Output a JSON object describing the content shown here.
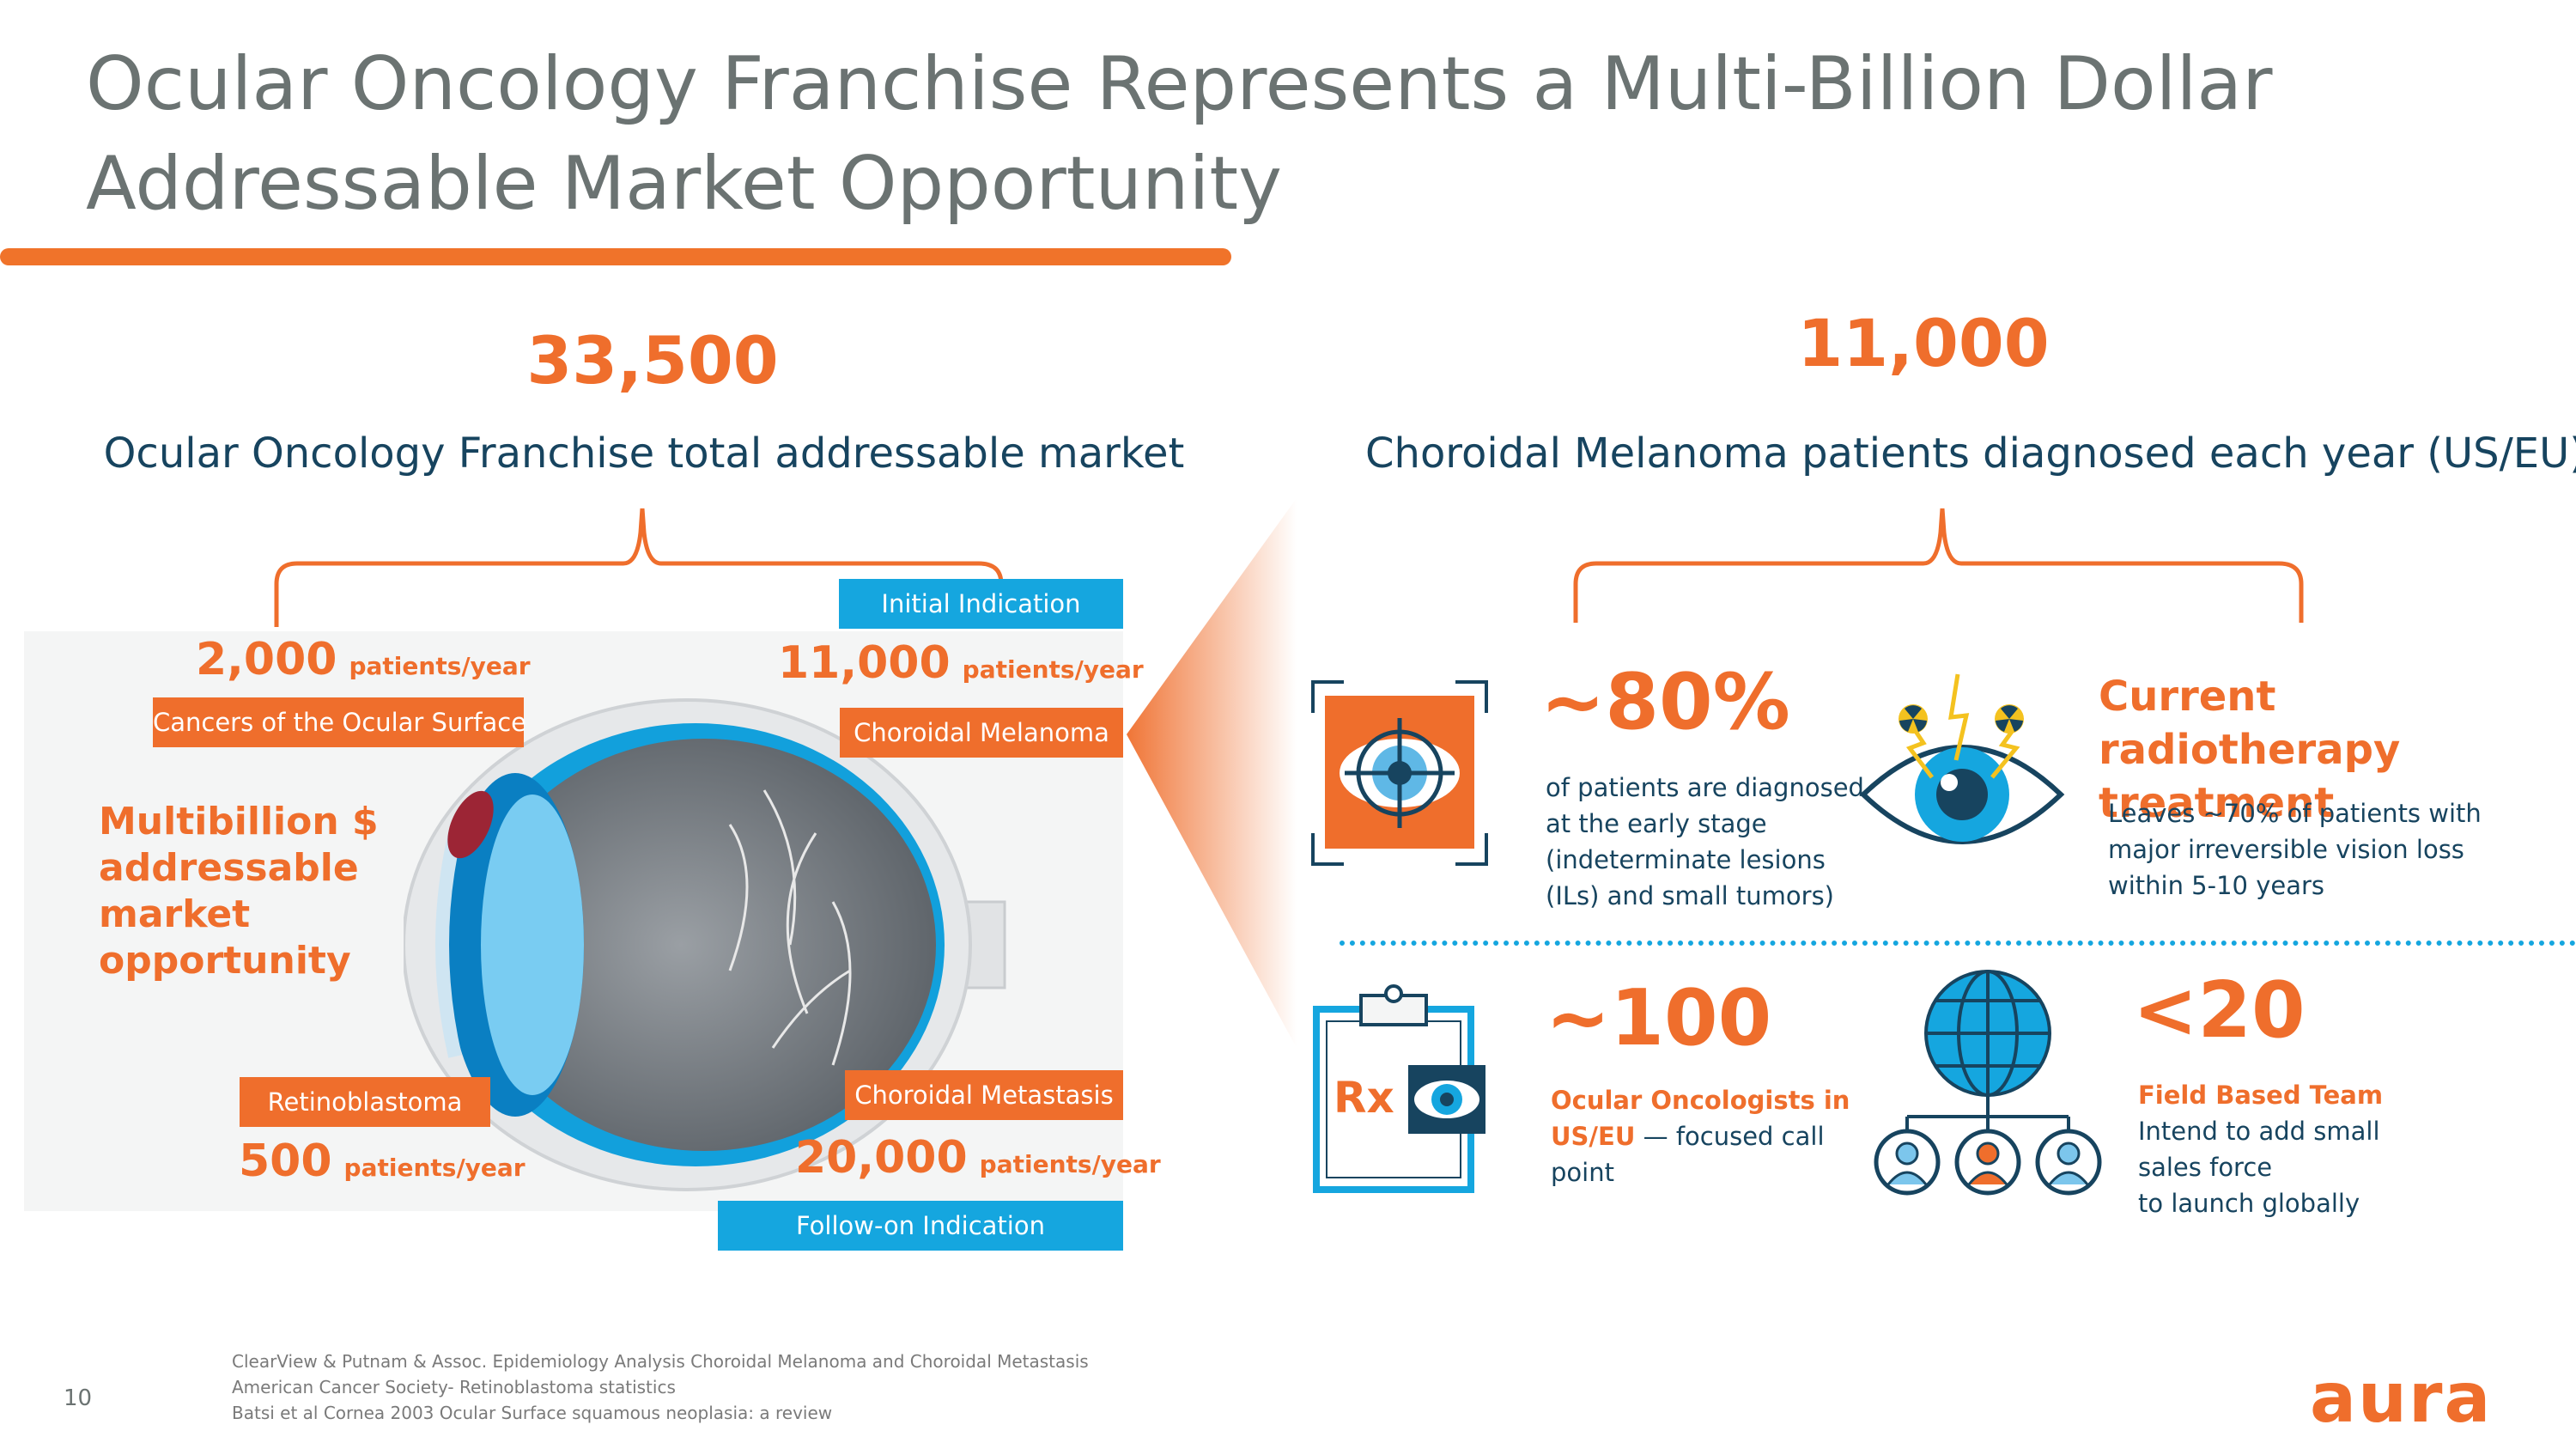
{
  "title_line1": "Ocular Oncology Franchise Represents a Multi-Billion Dollar",
  "title_line2": "Addressable Market Opportunity",
  "left": {
    "total": "33,500",
    "total_label": "Ocular Oncology Franchise total addressable market",
    "initial_indication": "Initial Indication",
    "followon_indication": "Follow-on Indication",
    "multibillion": [
      "Multibillion $",
      "addressable",
      "market",
      "opportunity"
    ],
    "unit": "patients/year",
    "cancers": {
      "value": "2,000",
      "label": "Cancers of the Ocular Surface"
    },
    "melanoma": {
      "value": "11,000",
      "label": "Choroidal Melanoma"
    },
    "retino": {
      "value": "500",
      "label": "Retinoblastoma"
    },
    "metastasis": {
      "value": "20,000",
      "label": "Choroidal Metastasis"
    }
  },
  "right": {
    "total": "11,000",
    "total_label": "Choroidal Melanoma patients diagnosed each year (US/EU)",
    "early": {
      "value": "~80%",
      "text": [
        "of patients are diagnosed",
        "at the early stage",
        "(indeterminate lesions",
        "(ILs) and small tumors)"
      ]
    },
    "radio": {
      "head": [
        "Current radiotherapy",
        "treatment"
      ],
      "text": [
        "Leaves ~70% of patients with",
        "major irreversible vision loss",
        "within 5-10 years"
      ]
    },
    "oncologists": {
      "value": "~100",
      "bold1": "Ocular Oncologists in",
      "bold2": "US/EU",
      "rest2": " — focused call",
      "rest3": "point",
      "rx": "Rx"
    },
    "team": {
      "value": "<20",
      "head": "Field Based Team",
      "text": [
        "Intend to add small",
        "sales force",
        "to launch globally"
      ]
    }
  },
  "footnotes": [
    "ClearView & Putnam & Assoc. Epidemiology Analysis Choroidal Melanoma and Choroidal Metastasis",
    "American Cancer Society- Retinoblastoma statistics",
    "Batsi et al Cornea 2003 Ocular Surface squamous neoplasia: a review"
  ],
  "page_number": "10",
  "logo": "aura",
  "colors": {
    "orange": "#ef6e2c",
    "blue": "#15a6df",
    "navy": "#17445f",
    "gray": "#6b7372"
  }
}
